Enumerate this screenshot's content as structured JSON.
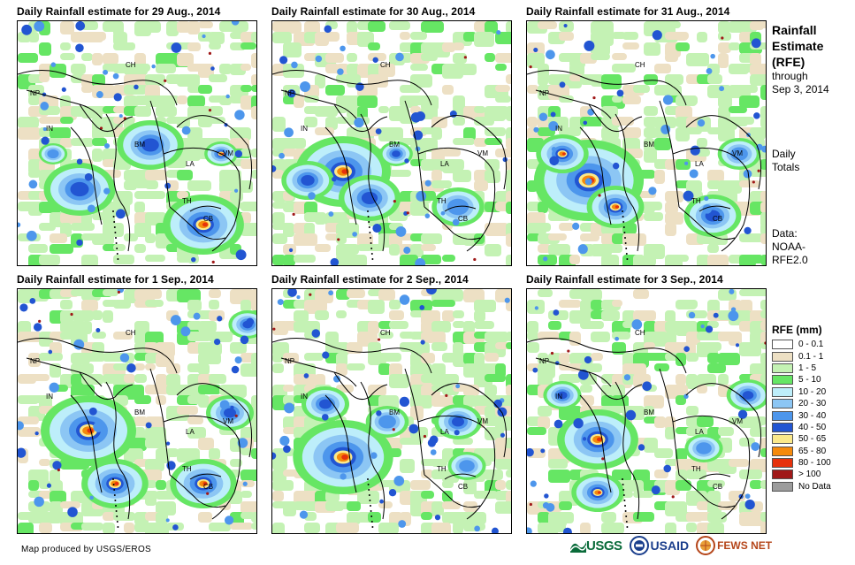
{
  "panels": [
    {
      "title": "Daily Rainfall estimate for 29 Aug., 2014",
      "variant": 0
    },
    {
      "title": "Daily Rainfall estimate for 30 Aug., 2014",
      "variant": 1
    },
    {
      "title": "Daily Rainfall estimate for 31 Aug., 2014",
      "variant": 2
    },
    {
      "title": "Daily Rainfall estimate for 1 Sep., 2014",
      "variant": 3
    },
    {
      "title": "Daily Rainfall estimate for 2 Sep., 2014",
      "variant": 4
    },
    {
      "title": "Daily Rainfall estimate for 3 Sep., 2014",
      "variant": 5
    }
  ],
  "country_labels": [
    "CH",
    "NP",
    "IN",
    "BM",
    "LA",
    "VM",
    "TH",
    "CB"
  ],
  "sidebar": {
    "title_line1": "Rainfall",
    "title_line2": "Estimate",
    "title_line3": "(RFE)",
    "through": "through",
    "date": "Sep 3, 2014",
    "daily": "Daily",
    "totals": "Totals",
    "data_label": "Data:",
    "source_line1": "NOAA-",
    "source_line2": "RFE2.0"
  },
  "legend": {
    "title": "RFE (mm)",
    "items": [
      {
        "label": "0 - 0.1",
        "color": "#ffffff"
      },
      {
        "label": "0.1 - 1",
        "color": "#ede0c4"
      },
      {
        "label": "1 - 5",
        "color": "#c4f2b4"
      },
      {
        "label": "5 - 10",
        "color": "#66e664"
      },
      {
        "label": "10 - 20",
        "color": "#bdeefa"
      },
      {
        "label": "20 - 30",
        "color": "#8cc6f4"
      },
      {
        "label": "30 - 40",
        "color": "#4d96ec"
      },
      {
        "label": "40 - 50",
        "color": "#2255d2"
      },
      {
        "label": "50 - 65",
        "color": "#fbe98a"
      },
      {
        "label": "65 - 80",
        "color": "#f58a0c"
      },
      {
        "label": "80 - 100",
        "color": "#e6320c"
      },
      {
        "label": "> 100",
        "color": "#a01818"
      },
      {
        "label": "No Data",
        "color": "#9c9c9c"
      }
    ]
  },
  "footer": {
    "credit": "Map produced by USGS/EROS",
    "logos": {
      "usgs": "USGS",
      "usaid": "USAID",
      "fewsnet": "FEWS NET"
    }
  }
}
